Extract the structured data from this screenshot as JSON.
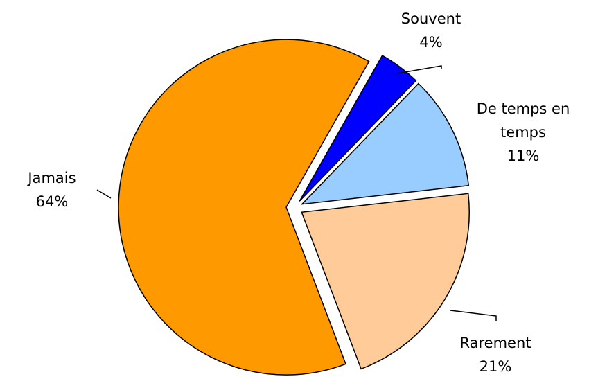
{
  "chart_data": {
    "type": "pie",
    "categories": [
      "Souvent",
      "De temps en temps",
      "Rarement",
      "Jamais"
    ],
    "values": [
      4,
      11,
      21,
      64
    ],
    "value_labels": [
      "4%",
      "11%",
      "21%",
      "64%"
    ],
    "colors": [
      "#0000ff",
      "#99ccff",
      "#ffcc99",
      "#ff9900"
    ]
  }
}
